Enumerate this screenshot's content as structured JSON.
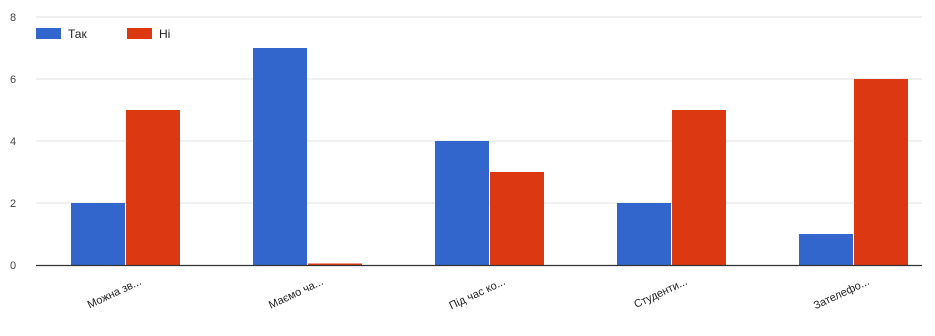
{
  "chart_data": {
    "type": "bar",
    "categories": [
      "Можна зв...",
      "Маємо ча...",
      "Під час ко...",
      "Студенти...",
      "Зателефо..."
    ],
    "series": [
      {
        "name": "Так",
        "color": "#3366cc",
        "values": [
          2,
          7,
          4,
          2,
          1
        ]
      },
      {
        "name": "Ні",
        "color": "#dc3912",
        "values": [
          5,
          0,
          3,
          5,
          6
        ]
      }
    ],
    "ylim": [
      0,
      8
    ],
    "yticks": [
      0,
      2,
      4,
      6,
      8
    ],
    "grid": true,
    "legend_position": "top-left",
    "colors": {
      "gridline": "#e0e0e0",
      "baseline": "#333333"
    }
  }
}
